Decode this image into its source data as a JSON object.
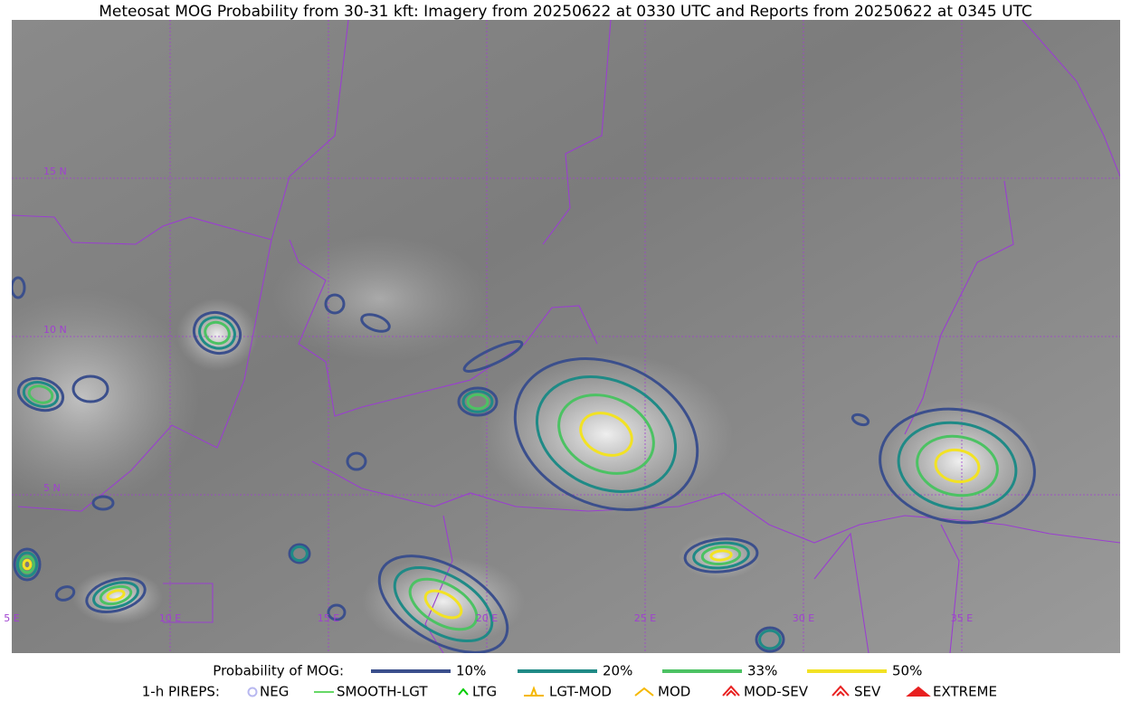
{
  "title": "Meteosat MOG Probability from 30-31 kft: Imagery from 20250622 at 0330 UTC and Reports from 20250622 at 0345 UTC",
  "map": {
    "lat_labels": [
      "15 N",
      "10 N",
      "5 N"
    ],
    "lon_labels": [
      "5 E",
      "10 E",
      "15 E",
      "20 E",
      "25 E",
      "30 E",
      "35 E"
    ]
  },
  "legend": {
    "probability_title": "Probability of MOG:",
    "probability": [
      {
        "label": "10%",
        "color": "#3b4f8c"
      },
      {
        "label": "20%",
        "color": "#1f8a86"
      },
      {
        "label": "33%",
        "color": "#4cc263"
      },
      {
        "label": "50%",
        "color": "#f2e224"
      }
    ],
    "pireps_title": "1-h PIREPS:",
    "pireps": [
      {
        "label": "NEG",
        "color": "#b8b8f0"
      },
      {
        "label": "SMOOTH-LGT",
        "color": "#33cc33"
      },
      {
        "label": "LTG",
        "color": "#00cc00"
      },
      {
        "label": "LGT-MOD",
        "color": "#f5b800"
      },
      {
        "label": "MOD",
        "color": "#f5b800"
      },
      {
        "label": "MOD-SEV",
        "color": "#e82020"
      },
      {
        "label": "SEV",
        "color": "#e82020"
      },
      {
        "label": "EXTREME",
        "color": "#e82020"
      }
    ]
  }
}
